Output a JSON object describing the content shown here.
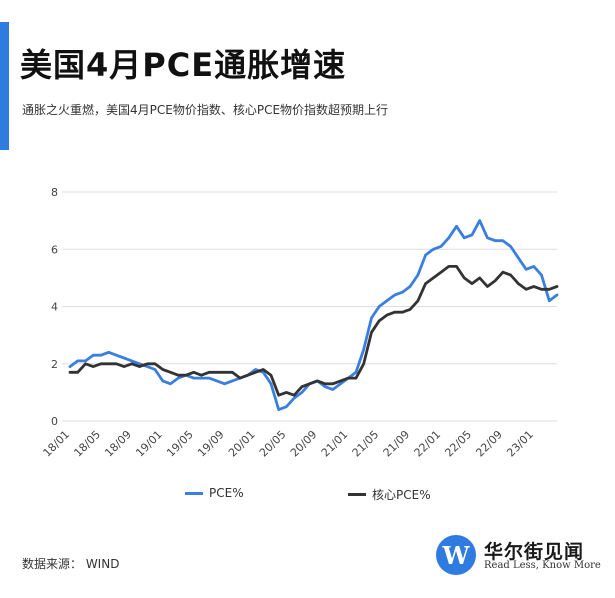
{
  "header": {
    "title": "美国4月PCE通胀增速",
    "subtitle": "通胀之火重燃，美国4月PCE物价指数、核心PCE物价指数超预期上行"
  },
  "footer": {
    "source": "数据来源： WIND"
  },
  "brand": {
    "logo_letter": "W",
    "name": "华尔街见闻",
    "slogan": "Read Less, Know More"
  },
  "colors": {
    "accent": "#2f7be0",
    "pce": "#3a7ee0",
    "core": "#333333",
    "grid": "#dddddd",
    "axis_text": "#444444"
  },
  "chart_data": {
    "type": "line",
    "title": "",
    "xlabel": "",
    "ylabel": "",
    "ylim": [
      0,
      8
    ],
    "yticks": [
      0,
      2,
      4,
      6,
      8
    ],
    "grid": true,
    "legend_position": "bottom",
    "x_tick_labels": [
      "18/01",
      "18/05",
      "18/09",
      "19/01",
      "19/05",
      "19/09",
      "20/01",
      "20/05",
      "20/09",
      "21/01",
      "21/05",
      "21/09",
      "22/01",
      "22/05",
      "22/09",
      "23/01"
    ],
    "x": [
      "18/01",
      "18/02",
      "18/03",
      "18/04",
      "18/05",
      "18/06",
      "18/07",
      "18/08",
      "18/09",
      "18/10",
      "18/11",
      "18/12",
      "19/01",
      "19/02",
      "19/03",
      "19/04",
      "19/05",
      "19/06",
      "19/07",
      "19/08",
      "19/09",
      "19/10",
      "19/11",
      "19/12",
      "20/01",
      "20/02",
      "20/03",
      "20/04",
      "20/05",
      "20/06",
      "20/07",
      "20/08",
      "20/09",
      "20/10",
      "20/11",
      "20/12",
      "21/01",
      "21/02",
      "21/03",
      "21/04",
      "21/05",
      "21/06",
      "21/07",
      "21/08",
      "21/09",
      "21/10",
      "21/11",
      "21/12",
      "22/01",
      "22/02",
      "22/03",
      "22/04",
      "22/05",
      "22/06",
      "22/07",
      "22/08",
      "22/09",
      "22/10",
      "22/11",
      "22/12",
      "23/01",
      "23/02",
      "23/03",
      "23/04"
    ],
    "series": [
      {
        "name": "PCE%",
        "color": "#3a7ee0",
        "values": [
          1.9,
          2.1,
          2.1,
          2.3,
          2.3,
          2.4,
          2.3,
          2.2,
          2.1,
          2.0,
          1.9,
          1.8,
          1.4,
          1.3,
          1.5,
          1.6,
          1.5,
          1.5,
          1.5,
          1.4,
          1.3,
          1.4,
          1.5,
          1.6,
          1.8,
          1.7,
          1.3,
          0.4,
          0.5,
          0.8,
          1.0,
          1.3,
          1.4,
          1.2,
          1.1,
          1.3,
          1.5,
          1.7,
          2.5,
          3.6,
          4.0,
          4.2,
          4.4,
          4.5,
          4.7,
          5.1,
          5.8,
          6.0,
          6.1,
          6.4,
          6.8,
          6.4,
          6.5,
          7.0,
          6.4,
          6.3,
          6.3,
          6.1,
          5.7,
          5.3,
          5.4,
          5.1,
          4.2,
          4.4
        ]
      },
      {
        "name": "核心PCE%",
        "color": "#333333",
        "values": [
          1.7,
          1.7,
          2.0,
          1.9,
          2.0,
          2.0,
          2.0,
          1.9,
          2.0,
          1.9,
          2.0,
          2.0,
          1.8,
          1.7,
          1.6,
          1.6,
          1.7,
          1.6,
          1.7,
          1.7,
          1.7,
          1.7,
          1.5,
          1.6,
          1.7,
          1.8,
          1.6,
          0.9,
          1.0,
          0.9,
          1.2,
          1.3,
          1.4,
          1.3,
          1.3,
          1.4,
          1.5,
          1.5,
          2.0,
          3.1,
          3.5,
          3.7,
          3.8,
          3.8,
          3.9,
          4.2,
          4.8,
          5.0,
          5.2,
          5.4,
          5.4,
          5.0,
          4.8,
          5.0,
          4.7,
          4.9,
          5.2,
          5.1,
          4.8,
          4.6,
          4.7,
          4.6,
          4.6,
          4.7
        ]
      }
    ]
  }
}
